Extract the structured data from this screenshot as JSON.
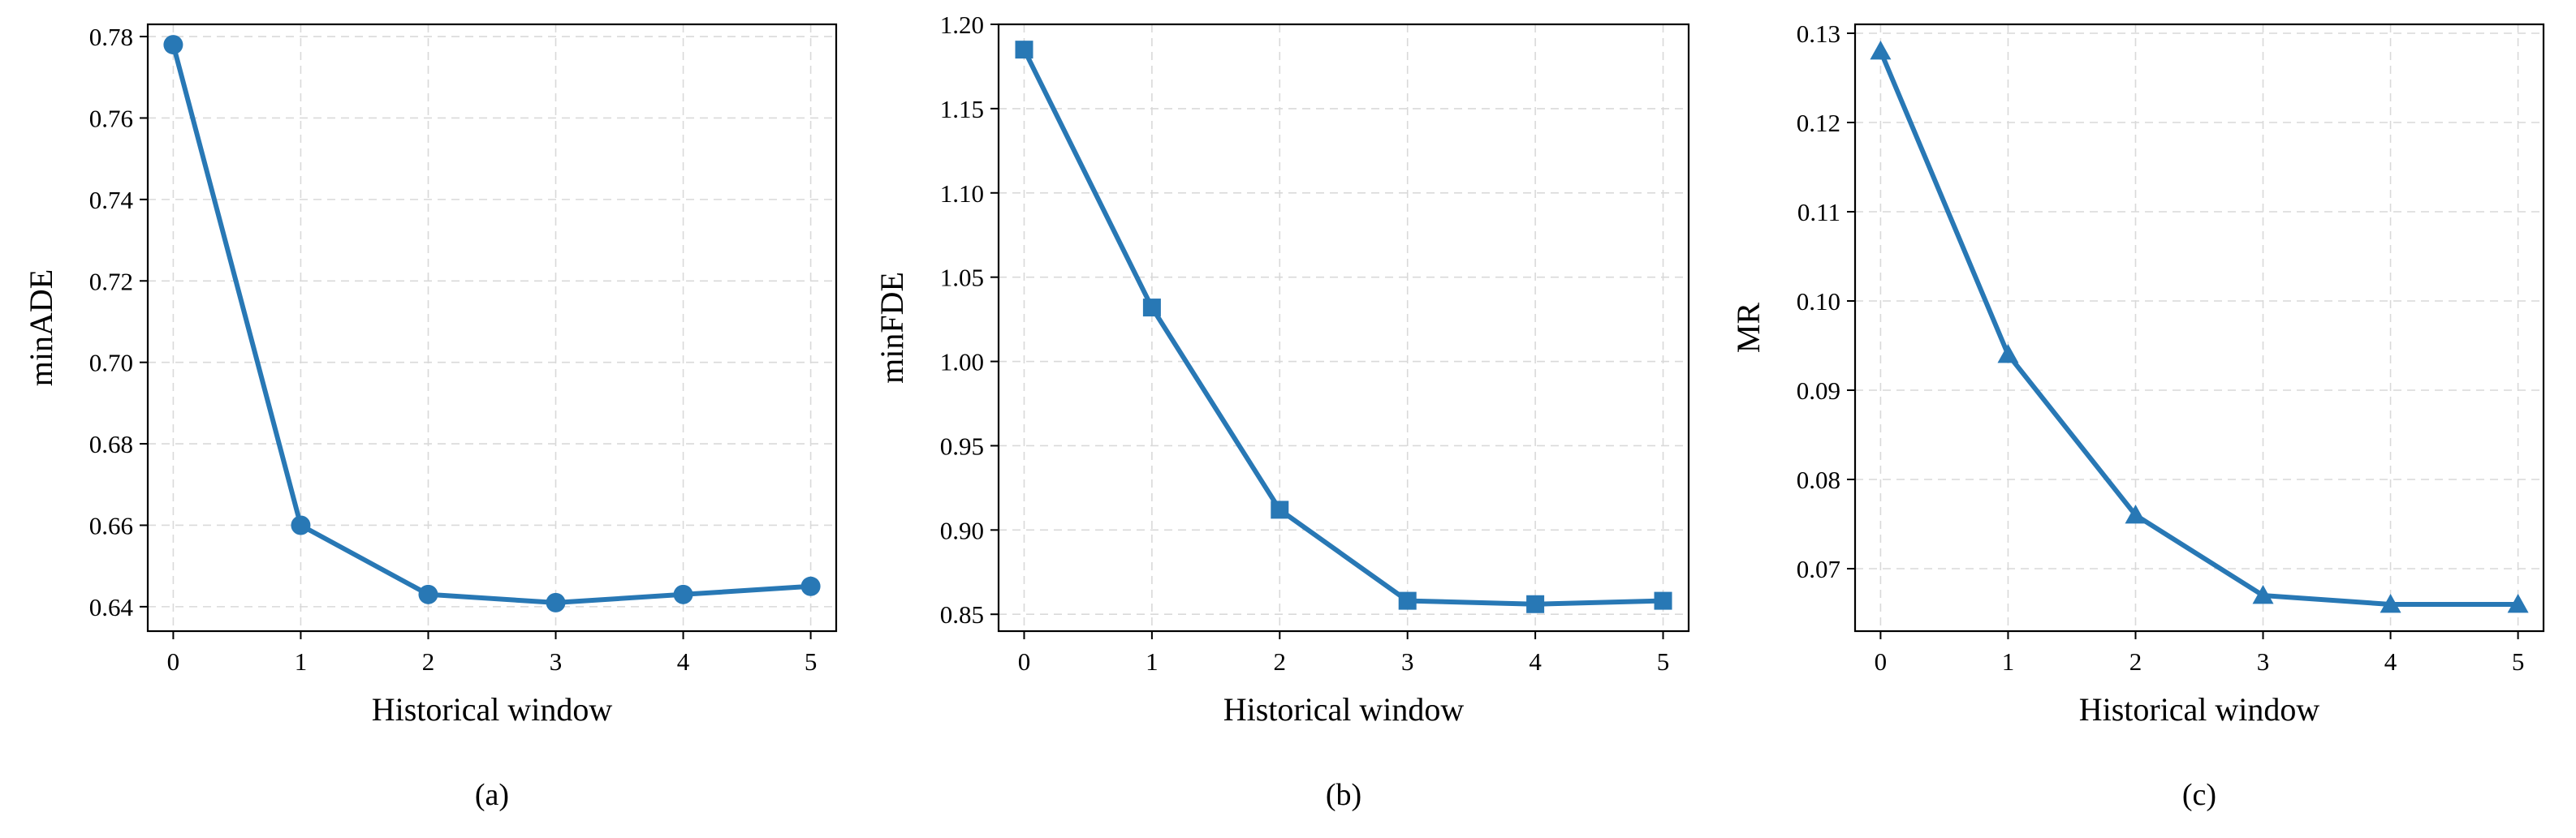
{
  "colors": {
    "series": "#2878b5"
  },
  "chart_data": [
    {
      "type": "line",
      "caption": "(a)",
      "xlabel": "Historical window",
      "ylabel": "minADE",
      "x": [
        0,
        1,
        2,
        3,
        4,
        5
      ],
      "xticks": [
        0,
        1,
        2,
        3,
        4,
        5
      ],
      "xlim": [
        -0.2,
        5.2
      ],
      "ylim": [
        0.634,
        0.783
      ],
      "yticks": [
        0.64,
        0.66,
        0.68,
        0.7,
        0.72,
        0.74,
        0.76,
        0.78
      ],
      "ytick_decimals": 2,
      "grid": true,
      "marker": "circle",
      "series": [
        {
          "values": [
            0.778,
            0.66,
            0.643,
            0.641,
            0.643,
            0.645
          ]
        }
      ]
    },
    {
      "type": "line",
      "caption": "(b)",
      "xlabel": "Historical window",
      "ylabel": "minFDE",
      "x": [
        0,
        1,
        2,
        3,
        4,
        5
      ],
      "xticks": [
        0,
        1,
        2,
        3,
        4,
        5
      ],
      "xlim": [
        -0.2,
        5.2
      ],
      "ylim": [
        0.84,
        1.2
      ],
      "yticks": [
        0.85,
        0.9,
        0.95,
        1.0,
        1.05,
        1.1,
        1.15,
        1.2
      ],
      "ytick_decimals": 2,
      "grid": true,
      "marker": "square",
      "series": [
        {
          "values": [
            1.185,
            1.032,
            0.912,
            0.858,
            0.856,
            0.858
          ]
        }
      ]
    },
    {
      "type": "line",
      "caption": "(c)",
      "xlabel": "Historical window",
      "ylabel": "MR",
      "x": [
        0,
        1,
        2,
        3,
        4,
        5
      ],
      "xticks": [
        0,
        1,
        2,
        3,
        4,
        5
      ],
      "xlim": [
        -0.2,
        5.2
      ],
      "ylim": [
        0.063,
        0.131
      ],
      "yticks": [
        0.07,
        0.08,
        0.09,
        0.1,
        0.11,
        0.12,
        0.13
      ],
      "ytick_decimals": 2,
      "grid": true,
      "marker": "triangle",
      "series": [
        {
          "values": [
            0.128,
            0.094,
            0.076,
            0.067,
            0.066,
            0.066
          ]
        }
      ]
    }
  ]
}
